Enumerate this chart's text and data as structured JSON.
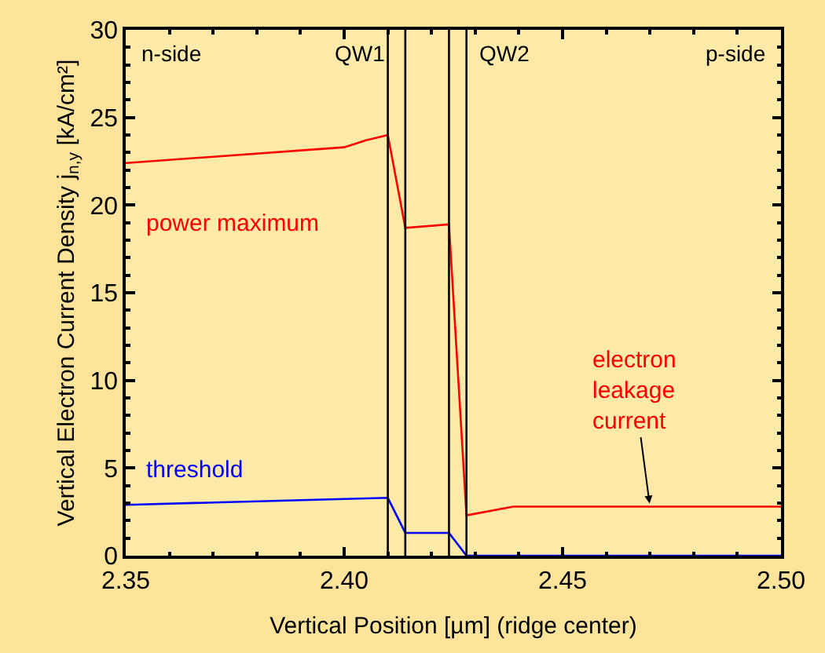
{
  "chart_data": {
    "type": "line",
    "xlabel": "Vertical Position [µm] (ridge center)",
    "ylabel": "Vertical Electron Current Density j$_{n,y}$ [kA/cm²]",
    "xlim": [
      2.35,
      2.5
    ],
    "ylim": [
      0,
      30
    ],
    "xticks": [
      2.35,
      {
        "value": 2.4,
        "label": "2.40"
      },
      2.45,
      {
        "value": 2.5,
        "label": "2.50"
      }
    ],
    "yticks": [
      0,
      5,
      10,
      15,
      20,
      25,
      30
    ],
    "grid": false,
    "legend": false,
    "marker": "none",
    "line_style": "solid",
    "series": [
      {
        "name": "power maximum",
        "color": "#ff0000",
        "x": [
          2.35,
          2.4,
          2.405,
          2.41,
          2.414,
          2.424,
          2.428,
          2.4387,
          2.5
        ],
        "values": [
          22.4,
          23.3,
          23.7,
          24.0,
          18.7,
          18.9,
          2.3,
          2.8,
          2.8
        ]
      },
      {
        "name": "threshold",
        "color": "#0000ff",
        "x": [
          2.35,
          2.41,
          2.414,
          2.424,
          2.428,
          2.5
        ],
        "values": [
          2.9,
          3.3,
          1.3,
          1.3,
          0,
          0
        ]
      }
    ],
    "ref_lines": [
      {
        "axis": "x",
        "value": 2.41,
        "color": "#000000"
      },
      {
        "axis": "x",
        "value": 2.414,
        "color": "#000000"
      },
      {
        "axis": "x",
        "value": 2.424,
        "color": "#000000"
      },
      {
        "axis": "x",
        "value": 2.428,
        "color": "#000000"
      }
    ],
    "annotations": [
      "n-side",
      "QW1",
      "QW2",
      "p-side",
      {
        "text": "electron\nleakage\ncurrent",
        "x": 2.47,
        "y": 2.8
      }
    ]
  }
}
